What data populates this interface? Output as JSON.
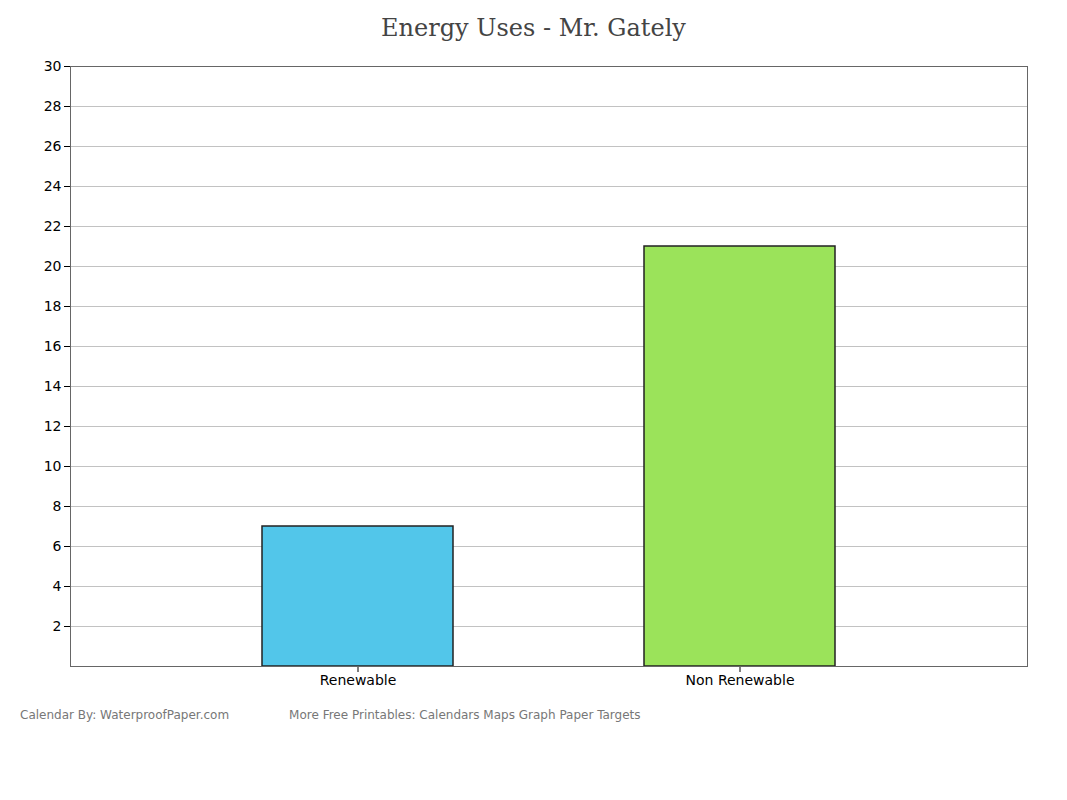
{
  "chart_data": {
    "type": "bar",
    "title": "Energy Uses - Mr. Gately",
    "categories": [
      "Renewable",
      "Non Renewable"
    ],
    "values": [
      7,
      21
    ],
    "colors": [
      "#52c6ea",
      "#9be35a"
    ],
    "ylim": [
      0,
      30
    ],
    "yticks": [
      2,
      4,
      6,
      8,
      10,
      12,
      14,
      16,
      18,
      20,
      22,
      24,
      26,
      28,
      30
    ],
    "grid": true,
    "annotations": [
      "Calendar By: WaterproofPaper.com",
      "More Free Printables: Calendars Maps Graph Paper Targets"
    ]
  }
}
